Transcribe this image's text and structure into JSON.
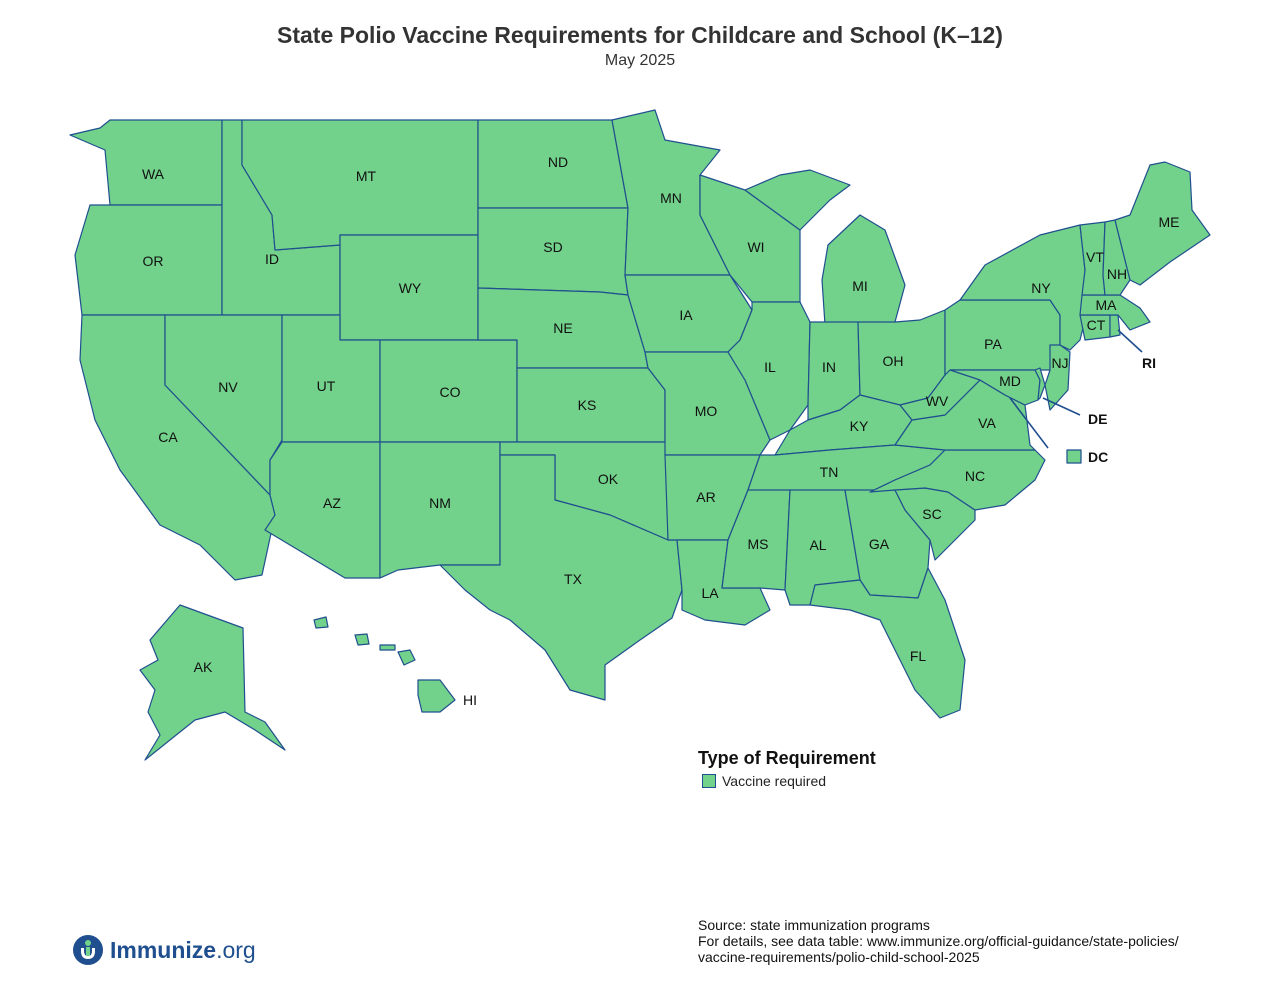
{
  "title": "State Polio Vaccine Requirements for Childcare and School (K–12)",
  "subtitle": "May 2025",
  "colors": {
    "vaccine_required": "#72d18a",
    "border": "#1f4f8f",
    "brand": "#1f4f8f"
  },
  "states": {
    "WA": "Vaccine required",
    "OR": "Vaccine required",
    "CA": "Vaccine required",
    "ID": "Vaccine required",
    "NV": "Vaccine required",
    "MT": "Vaccine required",
    "WY": "Vaccine required",
    "UT": "Vaccine required",
    "AZ": "Vaccine required",
    "CO": "Vaccine required",
    "NM": "Vaccine required",
    "ND": "Vaccine required",
    "SD": "Vaccine required",
    "NE": "Vaccine required",
    "KS": "Vaccine required",
    "OK": "Vaccine required",
    "TX": "Vaccine required",
    "MN": "Vaccine required",
    "IA": "Vaccine required",
    "MO": "Vaccine required",
    "AR": "Vaccine required",
    "LA": "Vaccine required",
    "WI": "Vaccine required",
    "IL": "Vaccine required",
    "MI": "Vaccine required",
    "IN": "Vaccine required",
    "OH": "Vaccine required",
    "KY": "Vaccine required",
    "TN": "Vaccine required",
    "MS": "Vaccine required",
    "AL": "Vaccine required",
    "GA": "Vaccine required",
    "FL": "Vaccine required",
    "SC": "Vaccine required",
    "NC": "Vaccine required",
    "VA": "Vaccine required",
    "WV": "Vaccine required",
    "PA": "Vaccine required",
    "NY": "Vaccine required",
    "MD": "Vaccine required",
    "DE": "Vaccine required",
    "NJ": "Vaccine required",
    "CT": "Vaccine required",
    "RI": "Vaccine required",
    "MA": "Vaccine required",
    "VT": "Vaccine required",
    "NH": "Vaccine required",
    "ME": "Vaccine required",
    "AK": "Vaccine required",
    "HI": "Vaccine required",
    "DC": "Vaccine required"
  },
  "labels": {
    "WA": "WA",
    "OR": "OR",
    "CA": "CA",
    "ID": "ID",
    "NV": "NV",
    "MT": "MT",
    "WY": "WY",
    "UT": "UT",
    "AZ": "AZ",
    "CO": "CO",
    "NM": "NM",
    "ND": "ND",
    "SD": "SD",
    "NE": "NE",
    "KS": "KS",
    "OK": "OK",
    "TX": "TX",
    "MN": "MN",
    "IA": "IA",
    "MO": "MO",
    "AR": "AR",
    "LA": "LA",
    "WI": "WI",
    "IL": "IL",
    "MI": "MI",
    "IN": "IN",
    "OH": "OH",
    "KY": "KY",
    "TN": "TN",
    "MS": "MS",
    "AL": "AL",
    "GA": "GA",
    "FL": "FL",
    "SC": "SC",
    "NC": "NC",
    "VA": "VA",
    "WV": "WV",
    "PA": "PA",
    "NY": "NY",
    "MD": "MD",
    "NJ": "NJ",
    "CT": "CT",
    "MA": "MA",
    "VT": "VT",
    "NH": "NH",
    "ME": "ME",
    "AK": "AK",
    "HI": "HI",
    "RI": "RI",
    "DE": "DE",
    "DC": "DC"
  },
  "legend": {
    "title": "Type of Requirement",
    "items": [
      "Vaccine required"
    ]
  },
  "source": {
    "line1": "Source: state immunization programs",
    "line2": "For details, see data table: www.immunize.org/official-guidance/state-policies/",
    "line3": "vaccine-requirements/polio-child-school-2025"
  },
  "logo": {
    "name": "Immunize",
    "suffix": ".org"
  }
}
